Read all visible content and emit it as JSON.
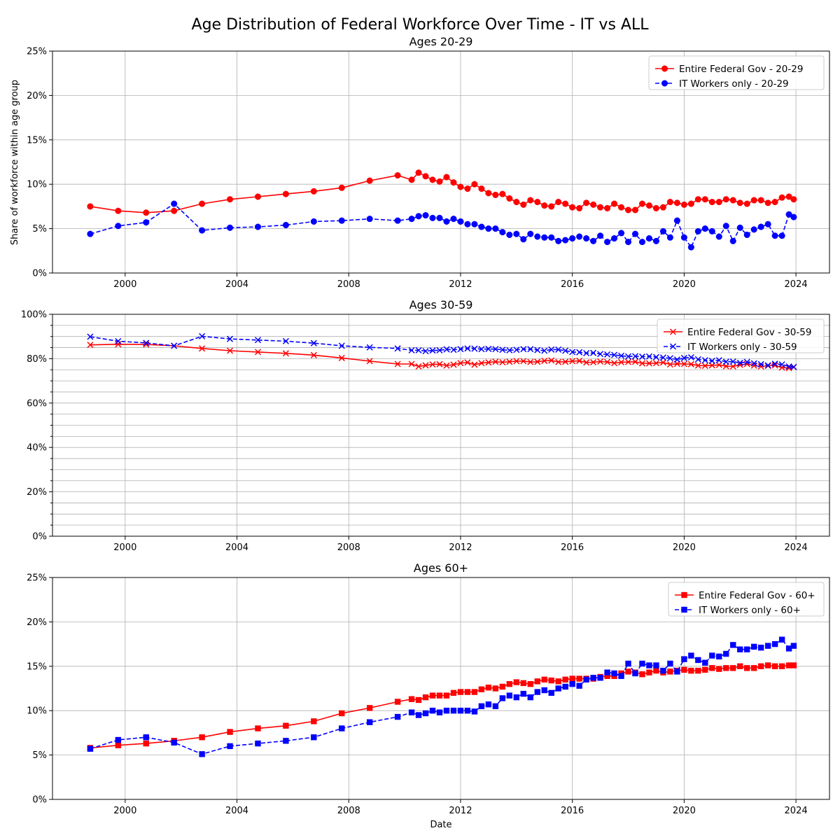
{
  "figure": {
    "title": "Age Distribution of Federal Workforce Over Time - IT vs ALL",
    "xlabel": "Date",
    "ylabel": "Share of workforce within age group"
  },
  "colors": {
    "all": "#ff0000",
    "it": "#0000ff",
    "grid": "#b0b0b0"
  },
  "chart_data": [
    {
      "type": "line",
      "title": "Ages 20-29",
      "xlabel": "",
      "ylabel": "Share of workforce within age group",
      "xlim": [
        1997.4,
        2025.2
      ],
      "ylim": [
        0,
        25
      ],
      "xticks": [
        2000,
        2004,
        2008,
        2012,
        2016,
        2020,
        2024
      ],
      "yticks": [
        0,
        5,
        10,
        15,
        20,
        25
      ],
      "ytick_labels": [
        "0%",
        "5%",
        "10%",
        "15%",
        "20%",
        "25%"
      ],
      "minor_grid": false,
      "grid": true,
      "legend": "top-right",
      "marker": "circle",
      "series": [
        {
          "name": "Entire Federal Gov - 20-29",
          "style": "solid",
          "color": "#ff0000",
          "x": [
            1998.75,
            1999.75,
            2000.75,
            2001.75,
            2002.75,
            2003.75,
            2004.75,
            2005.75,
            2006.75,
            2007.75,
            2008.75,
            2009.75,
            2010.25,
            2010.5,
            2010.75,
            2011.0,
            2011.25,
            2011.5,
            2011.75,
            2012.0,
            2012.25,
            2012.5,
            2012.75,
            2013.0,
            2013.25,
            2013.5,
            2013.75,
            2014.0,
            2014.25,
            2014.5,
            2014.75,
            2015.0,
            2015.25,
            2015.5,
            2015.75,
            2016.0,
            2016.25,
            2016.5,
            2016.75,
            2017.0,
            2017.25,
            2017.5,
            2017.75,
            2018.0,
            2018.25,
            2018.5,
            2018.75,
            2019.0,
            2019.25,
            2019.5,
            2019.75,
            2020.0,
            2020.25,
            2020.5,
            2020.75,
            2021.0,
            2021.25,
            2021.5,
            2021.75,
            2022.0,
            2022.25,
            2022.5,
            2022.75,
            2023.0,
            2023.25,
            2023.5,
            2023.75,
            2023.92
          ],
          "y": [
            7.5,
            7.0,
            6.8,
            7.0,
            7.8,
            8.3,
            8.6,
            8.9,
            9.2,
            9.6,
            10.4,
            11.0,
            10.5,
            11.3,
            10.9,
            10.5,
            10.3,
            10.8,
            10.2,
            9.7,
            9.5,
            10.0,
            9.5,
            9.0,
            8.8,
            8.9,
            8.4,
            8.0,
            7.7,
            8.2,
            8.0,
            7.6,
            7.5,
            8.0,
            7.8,
            7.4,
            7.3,
            7.9,
            7.7,
            7.4,
            7.3,
            7.8,
            7.4,
            7.1,
            7.1,
            7.8,
            7.6,
            7.3,
            7.4,
            8.0,
            7.9,
            7.7,
            7.8,
            8.3,
            8.3,
            8.0,
            8.0,
            8.3,
            8.2,
            7.9,
            7.8,
            8.2,
            8.2,
            7.9,
            8.0,
            8.5,
            8.6,
            8.3
          ]
        },
        {
          "name": "IT Workers only - 20-29",
          "style": "dashed",
          "color": "#0000ff",
          "x": [
            1998.75,
            1999.75,
            2000.75,
            2001.75,
            2002.75,
            2003.75,
            2004.75,
            2005.75,
            2006.75,
            2007.75,
            2008.75,
            2009.75,
            2010.25,
            2010.5,
            2010.75,
            2011.0,
            2011.25,
            2011.5,
            2011.75,
            2012.0,
            2012.25,
            2012.5,
            2012.75,
            2013.0,
            2013.25,
            2013.5,
            2013.75,
            2014.0,
            2014.25,
            2014.5,
            2014.75,
            2015.0,
            2015.25,
            2015.5,
            2015.75,
            2016.0,
            2016.25,
            2016.5,
            2016.75,
            2017.0,
            2017.25,
            2017.5,
            2017.75,
            2018.0,
            2018.25,
            2018.5,
            2018.75,
            2019.0,
            2019.25,
            2019.5,
            2019.75,
            2020.0,
            2020.25,
            2020.5,
            2020.75,
            2021.0,
            2021.25,
            2021.5,
            2021.75,
            2022.0,
            2022.25,
            2022.5,
            2022.75,
            2023.0,
            2023.25,
            2023.5,
            2023.75,
            2023.92
          ],
          "y": [
            4.4,
            5.3,
            5.7,
            7.8,
            4.8,
            5.1,
            5.2,
            5.4,
            5.8,
            5.9,
            6.1,
            5.9,
            6.1,
            6.4,
            6.5,
            6.2,
            6.2,
            5.8,
            6.1,
            5.8,
            5.5,
            5.5,
            5.2,
            5.0,
            5.0,
            4.6,
            4.3,
            4.4,
            3.8,
            4.4,
            4.1,
            4.0,
            4.0,
            3.6,
            3.7,
            3.9,
            4.1,
            3.9,
            3.6,
            4.2,
            3.5,
            3.9,
            4.5,
            3.5,
            4.4,
            3.5,
            3.9,
            3.6,
            4.7,
            4.0,
            5.9,
            4.0,
            2.9,
            4.7,
            5.0,
            4.7,
            4.1,
            5.3,
            3.6,
            5.1,
            4.3,
            4.9,
            5.2,
            5.5,
            4.2,
            4.2,
            6.6,
            6.3
          ]
        }
      ]
    },
    {
      "type": "line",
      "title": "Ages 30-59",
      "xlabel": "",
      "ylabel": "",
      "xlim": [
        1997.4,
        2025.2
      ],
      "ylim": [
        0,
        100
      ],
      "xticks": [
        2000,
        2004,
        2008,
        2012,
        2016,
        2020,
        2024
      ],
      "yticks": [
        0,
        20,
        40,
        60,
        80,
        100
      ],
      "ytick_labels": [
        "0%",
        "20%",
        "40%",
        "60%",
        "80%",
        "100%"
      ],
      "minor_grid": true,
      "grid": true,
      "legend": "top-right",
      "marker": "x",
      "series": [
        {
          "name": "Entire Federal Gov - 30-59",
          "style": "solid",
          "color": "#ff0000",
          "x": [
            1998.75,
            1999.75,
            2000.75,
            2001.75,
            2002.75,
            2003.75,
            2004.75,
            2005.75,
            2006.75,
            2007.75,
            2008.75,
            2009.75,
            2010.25,
            2010.5,
            2010.75,
            2011.0,
            2011.25,
            2011.5,
            2011.75,
            2012.0,
            2012.25,
            2012.5,
            2012.75,
            2013.0,
            2013.25,
            2013.5,
            2013.75,
            2014.0,
            2014.25,
            2014.5,
            2014.75,
            2015.0,
            2015.25,
            2015.5,
            2015.75,
            2016.0,
            2016.25,
            2016.5,
            2016.75,
            2017.0,
            2017.25,
            2017.5,
            2017.75,
            2018.0,
            2018.25,
            2018.5,
            2018.75,
            2019.0,
            2019.25,
            2019.5,
            2019.75,
            2020.0,
            2020.25,
            2020.5,
            2020.75,
            2021.0,
            2021.25,
            2021.5,
            2021.75,
            2022.0,
            2022.25,
            2022.5,
            2022.75,
            2023.0,
            2023.25,
            2023.5,
            2023.75,
            2023.92
          ],
          "y": [
            86.2,
            86.5,
            86.4,
            85.8,
            84.6,
            83.6,
            83.0,
            82.4,
            81.6,
            80.3,
            78.9,
            77.6,
            77.6,
            76.5,
            77.0,
            77.4,
            77.5,
            76.9,
            77.3,
            78.0,
            78.3,
            77.3,
            78.0,
            78.3,
            78.6,
            78.4,
            78.6,
            78.9,
            78.9,
            78.5,
            78.6,
            79.0,
            79.2,
            78.5,
            78.6,
            78.9,
            79.0,
            78.3,
            78.4,
            78.7,
            78.5,
            78.0,
            78.4,
            78.5,
            78.6,
            77.9,
            77.9,
            78.0,
            78.3,
            77.4,
            77.7,
            77.6,
            77.5,
            76.9,
            76.8,
            77.0,
            77.2,
            76.6,
            76.5,
            77.2,
            77.6,
            76.9,
            76.5,
            76.8,
            77.0,
            76.0,
            75.8,
            76.2
          ]
        },
        {
          "name": "IT Workers only - 30-59",
          "style": "dashed",
          "color": "#0000ff",
          "x": [
            1998.75,
            1999.75,
            2000.75,
            2001.75,
            2002.75,
            2003.75,
            2004.75,
            2005.75,
            2006.75,
            2007.75,
            2008.75,
            2009.75,
            2010.25,
            2010.5,
            2010.75,
            2011.0,
            2011.25,
            2011.5,
            2011.75,
            2012.0,
            2012.25,
            2012.5,
            2012.75,
            2013.0,
            2013.25,
            2013.5,
            2013.75,
            2014.0,
            2014.25,
            2014.5,
            2014.75,
            2015.0,
            2015.25,
            2015.5,
            2015.75,
            2016.0,
            2016.25,
            2016.5,
            2016.75,
            2017.0,
            2017.25,
            2017.5,
            2017.75,
            2018.0,
            2018.25,
            2018.5,
            2018.75,
            2019.0,
            2019.25,
            2019.5,
            2019.75,
            2020.0,
            2020.25,
            2020.5,
            2020.75,
            2021.0,
            2021.25,
            2021.5,
            2021.75,
            2022.0,
            2022.25,
            2022.5,
            2022.75,
            2023.0,
            2023.25,
            2023.5,
            2023.75,
            2023.92
          ],
          "y": [
            89.9,
            87.9,
            87.1,
            85.8,
            90.1,
            88.9,
            88.4,
            87.9,
            87.0,
            85.8,
            85.1,
            84.6,
            83.8,
            83.8,
            83.4,
            83.7,
            83.8,
            84.2,
            84.0,
            84.3,
            84.6,
            84.5,
            84.3,
            84.4,
            84.3,
            84.0,
            83.8,
            84.0,
            84.3,
            84.3,
            83.9,
            83.6,
            84.1,
            84.1,
            83.6,
            83.0,
            82.9,
            82.5,
            82.6,
            82.1,
            81.9,
            81.7,
            81.3,
            81.0,
            81.1,
            80.9,
            81.0,
            80.7,
            80.5,
            80.2,
            79.6,
            80.3,
            80.6,
            79.7,
            79.3,
            79.0,
            79.3,
            78.6,
            78.7,
            78.1,
            78.5,
            77.9,
            77.5,
            77.0,
            77.7,
            77.4,
            76.5,
            76.3
          ]
        }
      ]
    },
    {
      "type": "line",
      "title": "Ages 60+",
      "xlabel": "Date",
      "ylabel": "",
      "xlim": [
        1997.4,
        2025.2
      ],
      "ylim": [
        0,
        25
      ],
      "xticks": [
        2000,
        2004,
        2008,
        2012,
        2016,
        2020,
        2024
      ],
      "yticks": [
        0,
        5,
        10,
        15,
        20,
        25
      ],
      "ytick_labels": [
        "0%",
        "5%",
        "10%",
        "15%",
        "20%",
        "25%"
      ],
      "minor_grid": false,
      "grid": true,
      "legend": "top-right",
      "marker": "square",
      "series": [
        {
          "name": "Entire Federal Gov - 60+",
          "style": "solid",
          "color": "#ff0000",
          "x": [
            1998.75,
            1999.75,
            2000.75,
            2001.75,
            2002.75,
            2003.75,
            2004.75,
            2005.75,
            2006.75,
            2007.75,
            2008.75,
            2009.75,
            2010.25,
            2010.5,
            2010.75,
            2011.0,
            2011.25,
            2011.5,
            2011.75,
            2012.0,
            2012.25,
            2012.5,
            2012.75,
            2013.0,
            2013.25,
            2013.5,
            2013.75,
            2014.0,
            2014.25,
            2014.5,
            2014.75,
            2015.0,
            2015.25,
            2015.5,
            2015.75,
            2016.0,
            2016.25,
            2016.5,
            2016.75,
            2017.0,
            2017.25,
            2017.5,
            2017.75,
            2018.0,
            2018.25,
            2018.5,
            2018.75,
            2019.0,
            2019.25,
            2019.5,
            2019.75,
            2020.0,
            2020.25,
            2020.5,
            2020.75,
            2021.0,
            2021.25,
            2021.5,
            2021.75,
            2022.0,
            2022.25,
            2022.5,
            2022.75,
            2023.0,
            2023.25,
            2023.5,
            2023.75,
            2023.92
          ],
          "y": [
            5.8,
            6.1,
            6.3,
            6.6,
            7.0,
            7.6,
            8.0,
            8.3,
            8.8,
            9.7,
            10.3,
            11.0,
            11.3,
            11.2,
            11.5,
            11.7,
            11.7,
            11.7,
            12.0,
            12.1,
            12.1,
            12.1,
            12.4,
            12.6,
            12.5,
            12.7,
            13.0,
            13.2,
            13.1,
            13.0,
            13.3,
            13.5,
            13.4,
            13.3,
            13.5,
            13.6,
            13.6,
            13.6,
            13.6,
            13.8,
            13.9,
            13.9,
            14.2,
            14.4,
            14.3,
            14.1,
            14.3,
            14.5,
            14.3,
            14.4,
            14.5,
            14.6,
            14.5,
            14.5,
            14.6,
            14.8,
            14.7,
            14.8,
            14.8,
            15.0,
            14.8,
            14.8,
            15.0,
            15.1,
            15.0,
            15.0,
            15.1,
            15.1
          ]
        },
        {
          "name": "IT Workers only - 60+",
          "style": "dashed",
          "color": "#0000ff",
          "x": [
            1998.75,
            1999.75,
            2000.75,
            2001.75,
            2002.75,
            2003.75,
            2004.75,
            2005.75,
            2006.75,
            2007.75,
            2008.75,
            2009.75,
            2010.25,
            2010.5,
            2010.75,
            2011.0,
            2011.25,
            2011.5,
            2011.75,
            2012.0,
            2012.25,
            2012.5,
            2012.75,
            2013.0,
            2013.25,
            2013.5,
            2013.75,
            2014.0,
            2014.25,
            2014.5,
            2014.75,
            2015.0,
            2015.25,
            2015.5,
            2015.75,
            2016.0,
            2016.25,
            2016.5,
            2016.75,
            2017.0,
            2017.25,
            2017.5,
            2017.75,
            2018.0,
            2018.25,
            2018.5,
            2018.75,
            2019.0,
            2019.25,
            2019.5,
            2019.75,
            2020.0,
            2020.25,
            2020.5,
            2020.75,
            2021.0,
            2021.25,
            2021.5,
            2021.75,
            2022.0,
            2022.25,
            2022.5,
            2022.75,
            2023.0,
            2023.25,
            2023.5,
            2023.75,
            2023.92
          ],
          "y": [
            5.7,
            6.7,
            7.0,
            6.4,
            5.1,
            6.0,
            6.3,
            6.6,
            7.0,
            8.0,
            8.7,
            9.3,
            9.8,
            9.5,
            9.7,
            10.0,
            9.8,
            10.0,
            10.0,
            10.0,
            10.0,
            9.9,
            10.5,
            10.7,
            10.5,
            11.4,
            11.7,
            11.5,
            11.9,
            11.5,
            12.1,
            12.3,
            12.0,
            12.5,
            12.7,
            13.0,
            12.8,
            13.5,
            13.7,
            13.7,
            14.3,
            14.2,
            13.9,
            15.3,
            14.2,
            15.3,
            15.1,
            15.1,
            14.5,
            15.3,
            14.4,
            15.8,
            16.2,
            15.7,
            15.4,
            16.2,
            16.1,
            16.4,
            17.4,
            16.9,
            16.9,
            17.2,
            17.1,
            17.3,
            17.5,
            18.0,
            17.0,
            17.3
          ]
        }
      ]
    }
  ]
}
